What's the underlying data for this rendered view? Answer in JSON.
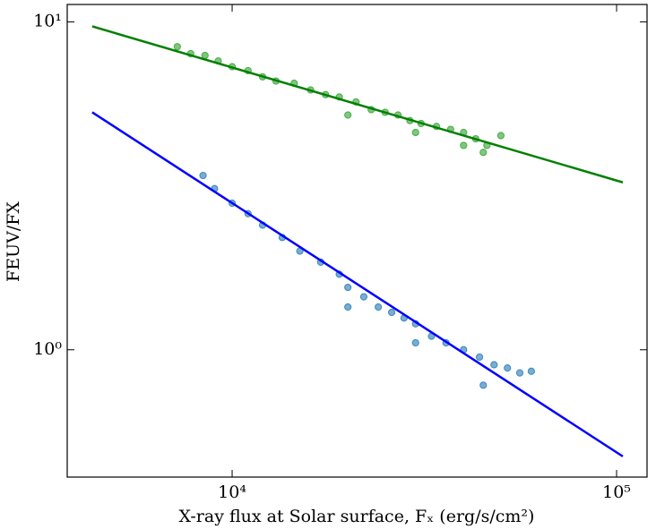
{
  "chart_data": {
    "type": "scatter",
    "xlabel": "X-ray flux at Solar surface, Fₓ (erg/s/cm²)",
    "ylabel": "FEUV/FX",
    "xscale": "log",
    "yscale": "log",
    "xlim": [
      3724,
      120000
    ],
    "ylim": [
      0.409,
      11.3
    ],
    "xticks": [
      {
        "value": 10000,
        "label": "10⁴"
      },
      {
        "value": 100000,
        "label": "10⁵"
      }
    ],
    "yticks": [
      {
        "value": 1,
        "label": "10⁰"
      },
      {
        "value": 10,
        "label": "10¹"
      }
    ],
    "series": [
      {
        "color": "#2ca02c",
        "x": [
          7200,
          7800,
          8500,
          9200,
          10000,
          11000,
          12000,
          13000,
          14500,
          16000,
          17500,
          19000,
          21000,
          23000,
          25000,
          27000,
          29000,
          31000,
          34000,
          37000,
          40000,
          43000,
          46000,
          50000,
          20000,
          30000,
          40000,
          45000
        ],
        "values": [
          8.4,
          8.0,
          7.9,
          7.6,
          7.3,
          7.1,
          6.8,
          6.6,
          6.5,
          6.2,
          6.0,
          5.9,
          5.7,
          5.4,
          5.3,
          5.2,
          5.0,
          4.9,
          4.8,
          4.7,
          4.6,
          4.4,
          4.2,
          4.5,
          5.2,
          4.6,
          4.2,
          4.0
        ]
      },
      {
        "color": "#1f77b4",
        "x": [
          8400,
          9000,
          10000,
          11000,
          12000,
          13500,
          15000,
          17000,
          19000,
          20000,
          22000,
          24000,
          26000,
          28000,
          30000,
          33000,
          36000,
          40000,
          44000,
          48000,
          52000,
          56000,
          60000,
          45000,
          20000,
          30000
        ],
        "values": [
          3.4,
          3.1,
          2.8,
          2.6,
          2.4,
          2.2,
          2.0,
          1.85,
          1.7,
          1.55,
          1.45,
          1.35,
          1.3,
          1.25,
          1.2,
          1.1,
          1.05,
          1.0,
          0.95,
          0.9,
          0.88,
          0.85,
          0.86,
          0.78,
          1.35,
          1.05
        ]
      }
    ],
    "lines": [
      {
        "color": "#008000",
        "x": [
          4325,
          103800
        ],
        "values": [
          9.69,
          3.24
        ]
      },
      {
        "color": "#0000ff",
        "x": [
          4325,
          103800
        ],
        "values": [
          5.3,
          0.473
        ]
      }
    ]
  }
}
